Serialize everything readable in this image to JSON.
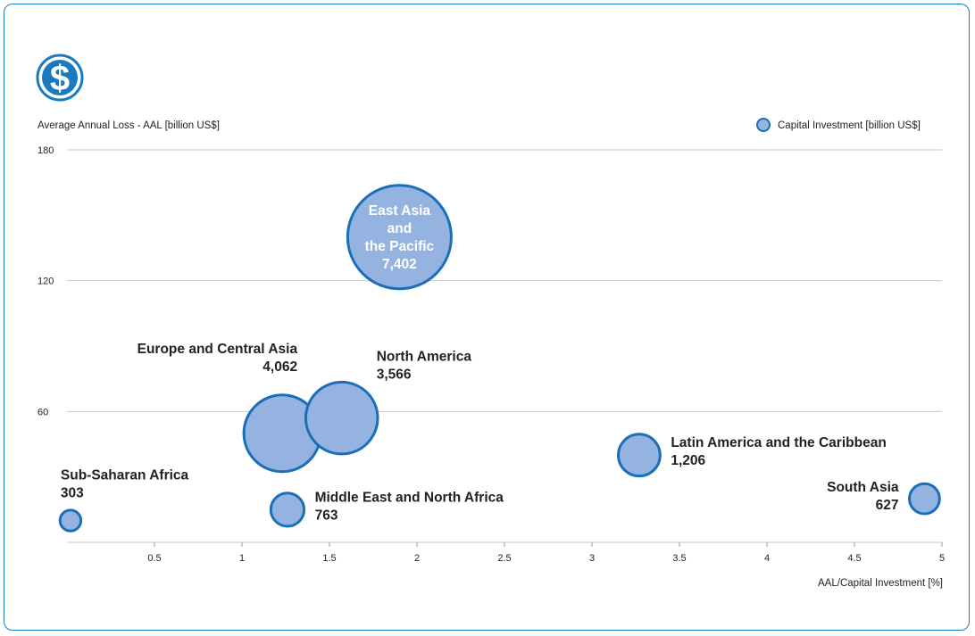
{
  "icon": "dollar-icon",
  "colors": {
    "frame": "#1a7abf",
    "bubble_fill": "#95b3e0",
    "bubble_stroke": "#1a6fb8",
    "grid": "#c8c8c8",
    "text": "#222222"
  },
  "chart_data": {
    "type": "scatter",
    "ylabel": "Average Annual Loss - AAL [billion US$]",
    "xlabel": "AAL/Capital Investment [%]",
    "legend": "Capital Investment [billion US$]",
    "legend_position": "top-right",
    "xlim": [
      0,
      5
    ],
    "ylim": [
      0,
      180
    ],
    "x_ticks": [
      "0.5",
      "1",
      "1.5",
      "2",
      "2.5",
      "3",
      "3.5",
      "4",
      "4.5",
      "5"
    ],
    "y_ticks": [
      "180",
      "120",
      "60"
    ],
    "grid": "horizontal",
    "points": [
      {
        "region": "East Asia and the Pacific",
        "x": 1.9,
        "y": 140,
        "capital": 7402,
        "label_lines": [
          "East Asia",
          "and",
          "the Pacific",
          "7,402"
        ],
        "label_pos": "inside"
      },
      {
        "region": "Europe and Central Asia",
        "x": 1.23,
        "y": 50,
        "capital": 4062,
        "label_lines": [
          "Europe and Central Asia",
          "4,062"
        ],
        "label_pos": "upper-left"
      },
      {
        "region": "North America",
        "x": 1.57,
        "y": 57,
        "capital": 3566,
        "label_lines": [
          "North America",
          "3,566"
        ],
        "label_pos": "upper-right"
      },
      {
        "region": "Latin America and the Caribbean",
        "x": 3.27,
        "y": 40,
        "capital": 1206,
        "label_lines": [
          "Latin America and the Caribbean",
          "1,206"
        ],
        "label_pos": "right"
      },
      {
        "region": "South Asia",
        "x": 4.9,
        "y": 20,
        "capital": 627,
        "label_lines": [
          "South Asia",
          "627"
        ],
        "label_pos": "left"
      },
      {
        "region": "Middle East and North Africa",
        "x": 1.26,
        "y": 15,
        "capital": 763,
        "label_lines": [
          "Middle East and North Africa",
          "763"
        ],
        "label_pos": "right"
      },
      {
        "region": "Sub-Saharan Africa",
        "x": 0.02,
        "y": 10,
        "capital": 303,
        "label_lines": [
          "Sub-Saharan Africa",
          "303"
        ],
        "label_pos": "above"
      }
    ]
  }
}
